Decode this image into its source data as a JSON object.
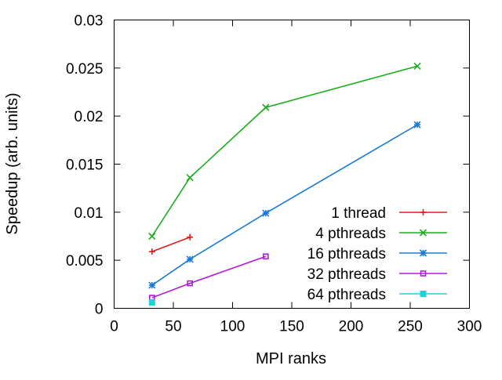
{
  "chart_data": {
    "type": "line",
    "title": "",
    "xlabel": "MPI ranks",
    "ylabel": "Speedup (arb. units)",
    "xlim": [
      0,
      300
    ],
    "ylim": [
      0,
      0.03
    ],
    "x_ticks": [
      0,
      50,
      100,
      150,
      200,
      250,
      300
    ],
    "x_tick_labels": [
      "0",
      "50",
      "100",
      "150",
      "200",
      "250",
      "300"
    ],
    "y_ticks": [
      0,
      0.005,
      0.01,
      0.015,
      0.02,
      0.025,
      0.03
    ],
    "y_tick_labels": [
      "0",
      "0.005",
      "0.01",
      "0.015",
      "0.02",
      "0.025",
      "0.03"
    ],
    "grid": false,
    "legend_position": "bottom-right",
    "series": [
      {
        "name": "1 thread",
        "color": "#e41a1c",
        "marker": "plus",
        "x": [
          32,
          64
        ],
        "y": [
          0.0059,
          0.0074
        ]
      },
      {
        "name": "4 pthreads",
        "color": "#1aad1a",
        "marker": "cross",
        "x": [
          32,
          64,
          128,
          256
        ],
        "y": [
          0.0075,
          0.0136,
          0.0209,
          0.0252
        ]
      },
      {
        "name": "16 pthreads",
        "color": "#1a7bd6",
        "marker": "star",
        "x": [
          32,
          64,
          128,
          256
        ],
        "y": [
          0.0024,
          0.0051,
          0.0099,
          0.0191
        ]
      },
      {
        "name": "32 pthreads",
        "color": "#b21ad6",
        "marker": "open-square",
        "x": [
          32,
          64,
          128
        ],
        "y": [
          0.0011,
          0.0026,
          0.0054
        ]
      },
      {
        "name": "64 pthreads",
        "color": "#1ad6d6",
        "marker": "filled-square",
        "x": [
          32
        ],
        "y": [
          0.0006
        ]
      }
    ]
  }
}
